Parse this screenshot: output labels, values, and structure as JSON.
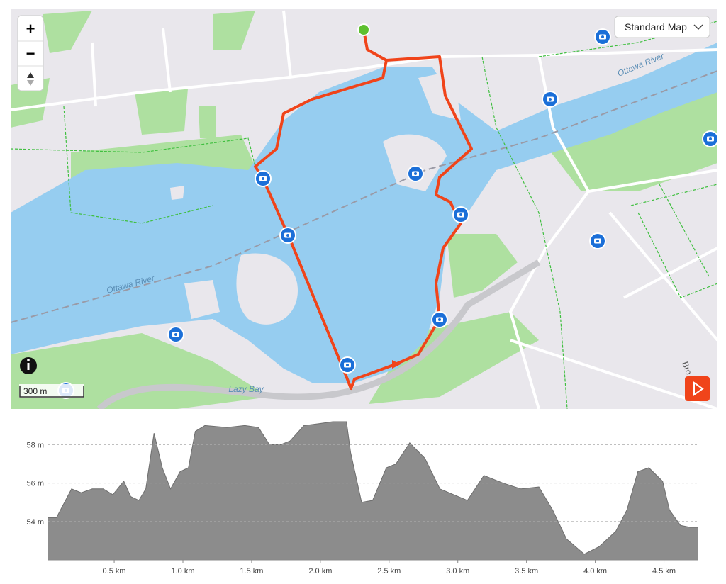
{
  "map": {
    "labels": {
      "river_east": "Ottawa River",
      "river_west": "Ottawa River",
      "bay": "Lazy Bay",
      "street": "Bro"
    },
    "controls": {
      "zoom_in": "+",
      "zoom_out": "−",
      "map_type": "Standard Map",
      "scale": "300 m"
    }
  },
  "chart_data": {
    "type": "area",
    "color": "#8c8c8c",
    "grid": true,
    "x": [
      0.02,
      0.08,
      0.19,
      0.26,
      0.34,
      0.42,
      0.49,
      0.57,
      0.62,
      0.68,
      0.73,
      0.79,
      0.85,
      0.91,
      0.98,
      1.04,
      1.09,
      1.16,
      1.32,
      1.45,
      1.55,
      1.63,
      1.71,
      1.78,
      1.88,
      1.99,
      2.09,
      2.19,
      2.22,
      2.3,
      2.38,
      2.48,
      2.55,
      2.65,
      2.76,
      2.87,
      2.97,
      3.07,
      3.19,
      3.33,
      3.46,
      3.59,
      3.69,
      3.79,
      3.92,
      4.03,
      4.15,
      4.23,
      4.31,
      4.39,
      4.49,
      4.54,
      4.62,
      4.69,
      4.75
    ],
    "values": [
      54.2,
      54.2,
      55.7,
      55.5,
      55.7,
      55.7,
      55.4,
      56.1,
      55.3,
      55.1,
      55.7,
      58.6,
      56.8,
      55.7,
      56.6,
      56.8,
      58.7,
      59.0,
      58.9,
      59.0,
      58.9,
      58.0,
      58.0,
      58.2,
      59.0,
      59.1,
      59.2,
      59.2,
      57.6,
      55.0,
      55.1,
      56.8,
      57.0,
      58.1,
      57.3,
      55.7,
      55.4,
      55.1,
      56.4,
      56.0,
      55.7,
      55.8,
      54.6,
      53.1,
      52.3,
      52.7,
      53.5,
      54.6,
      56.6,
      56.8,
      56.1,
      54.6,
      53.8,
      53.7,
      53.7
    ],
    "xlim": [
      0.02,
      4.75
    ],
    "ylim": [
      52,
      59.2
    ],
    "xticks": [
      {
        "value": 0.5,
        "label": "0.5 km"
      },
      {
        "value": 1.0,
        "label": "1.0 km"
      },
      {
        "value": 1.5,
        "label": "1.5 km"
      },
      {
        "value": 2.0,
        "label": "2.0 km"
      },
      {
        "value": 2.5,
        "label": "2.5 km"
      },
      {
        "value": 3.0,
        "label": "3.0 km"
      },
      {
        "value": 3.5,
        "label": "3.5 km"
      },
      {
        "value": 4.0,
        "label": "4.0 km"
      },
      {
        "value": 4.5,
        "label": "4.5 km"
      }
    ],
    "yticks": [
      {
        "value": 54,
        "label": "54 m"
      },
      {
        "value": 56,
        "label": "56 m"
      },
      {
        "value": 58,
        "label": "58 m"
      }
    ]
  }
}
